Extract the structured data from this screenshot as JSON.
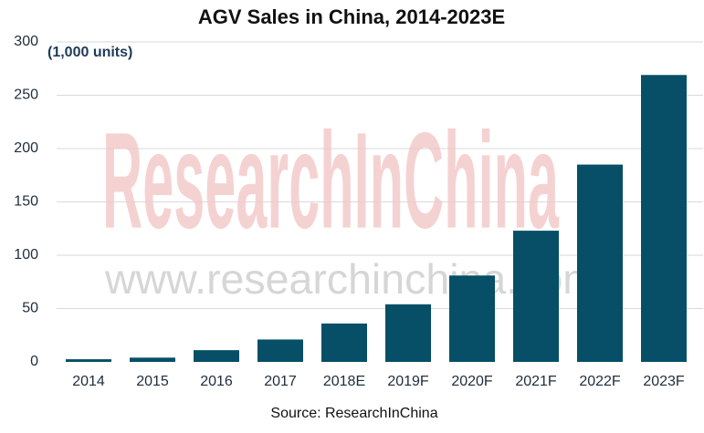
{
  "chart_data": {
    "type": "bar",
    "title": "AGV Sales in China, 2014-2023E",
    "unit_label": "(1,000 units)",
    "source": "Source: ResearchInChina",
    "watermark": "ResearchInChina",
    "watermark_url": "www.researchinchina.com",
    "categories": [
      "2014",
      "2015",
      "2016",
      "2017",
      "2018E",
      "2019F",
      "2020F",
      "2021F",
      "2022F",
      "2023F"
    ],
    "values": [
      2.5,
      4,
      11,
      21,
      36,
      54,
      81,
      123,
      185,
      269
    ],
    "color": "#064f66",
    "ylim": [
      0,
      300
    ],
    "yticks": [
      0,
      50,
      100,
      150,
      200,
      250,
      300
    ],
    "grid": true
  }
}
